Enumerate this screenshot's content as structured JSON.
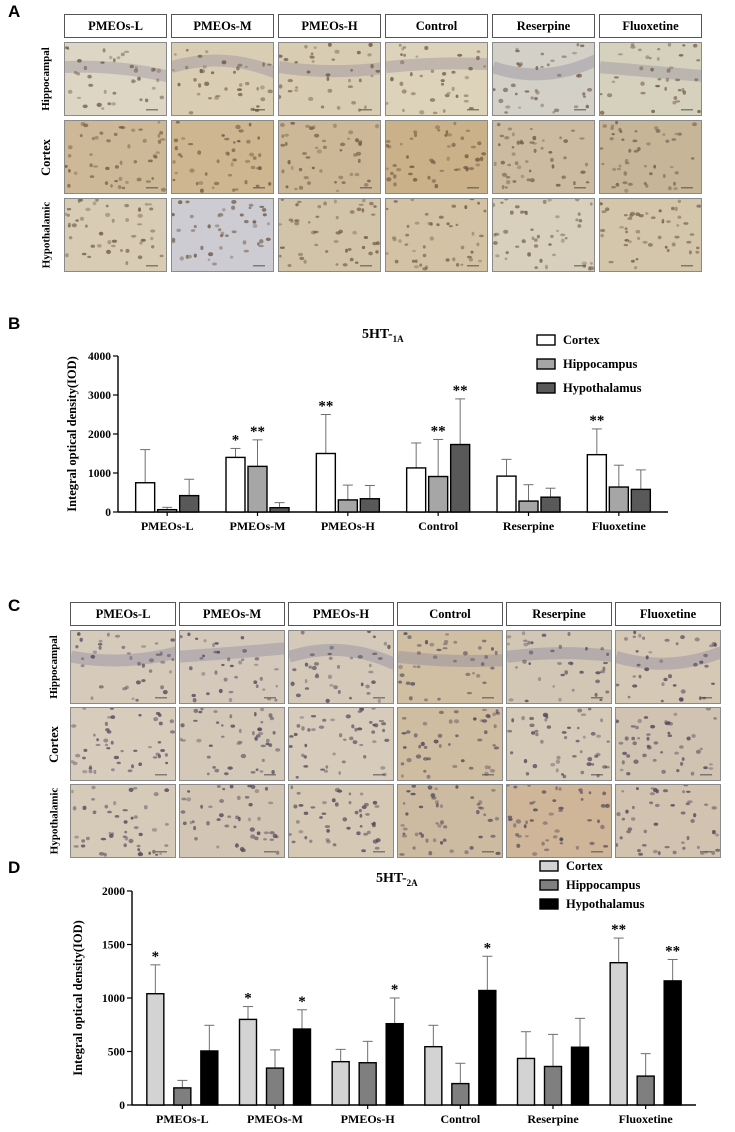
{
  "panel_labels": {
    "a": "A",
    "b": "B",
    "c": "C",
    "d": "D"
  },
  "groups": [
    "PMEOs-L",
    "PMEOs-M",
    "PMEOs-H",
    "Control",
    "Reserpine",
    "Fluoxetine"
  ],
  "rows_a": [
    "Hippocampal",
    "Cortex",
    "Hypothalamic"
  ],
  "rows_c": [
    "Hippocampal",
    "Cortex",
    "Hypothalamic"
  ],
  "micrograph_tints": {
    "a": [
      [
        "#ddd6c4",
        "#d9ceb4",
        "#d8ccb2",
        "#ddd3ba",
        "#d2d0c7",
        "#d6d1bd"
      ],
      [
        "#cdb897",
        "#cdb690",
        "#ccb796",
        "#cab189",
        "#cdbba1",
        "#c7b598"
      ],
      [
        "#d8ccb4",
        "#ccccd2",
        "#d2c4a8",
        "#d3c2a4",
        "#d8d0bd",
        "#d3c6ab"
      ]
    ],
    "c": [
      [
        "#d6cbbb",
        "#d4c9bb",
        "#d5cab9",
        "#d0bfa3",
        "#d2c6b4",
        "#d5c8b5"
      ],
      [
        "#d8cdbd",
        "#d4c8b8",
        "#d7cbbb",
        "#cfbda2",
        "#d5c9b8",
        "#d0c3b1"
      ],
      [
        "#d6cab8",
        "#d2c5b3",
        "#d5c8b5",
        "#ccbaa1",
        "#cfb699",
        "#d1c3af"
      ]
    ],
    "nuclei_a": "#6b5540",
    "nuclei_c": "#4a4256"
  },
  "chart_data": [
    {
      "type": "bar",
      "title_main": "5HT-",
      "title_sub": "1A",
      "ylabel": "Integral optical density(IOD)",
      "xlabel": "",
      "ylim": [
        0,
        4000
      ],
      "yticks": [
        0,
        1000,
        2000,
        3000,
        4000
      ],
      "grid": false,
      "legend_position": "top-right",
      "categories": [
        "PMEOs-L",
        "PMEOs-M",
        "PMEOs-H",
        "Control",
        "Reserpine",
        "Fluoxetine"
      ],
      "series": [
        {
          "name": "Cortex",
          "color": "#ffffff",
          "values": [
            750,
            1400,
            1500,
            1130,
            920,
            1470
          ],
          "errors": [
            850,
            230,
            1000,
            640,
            430,
            660
          ],
          "sig": [
            "",
            "*",
            "**",
            "",
            "",
            "**"
          ]
        },
        {
          "name": "Hippocampus",
          "color": "#a6a6a6",
          "values": [
            60,
            1170,
            310,
            910,
            280,
            640
          ],
          "errors": [
            60,
            680,
            380,
            950,
            420,
            560
          ],
          "sig": [
            "",
            "**",
            "",
            "**",
            "",
            ""
          ]
        },
        {
          "name": "Hypothalamus",
          "color": "#595959",
          "values": [
            420,
            110,
            340,
            1730,
            380,
            580
          ],
          "errors": [
            420,
            130,
            340,
            1170,
            230,
            500
          ],
          "sig": [
            "",
            "",
            "",
            "**",
            "",
            ""
          ]
        }
      ]
    },
    {
      "type": "bar",
      "title_main": "5HT-",
      "title_sub": "2A",
      "ylabel": "Integral optical density(IOD)",
      "xlabel": "",
      "ylim": [
        0,
        2000
      ],
      "yticks": [
        0,
        500,
        1000,
        1500,
        2000
      ],
      "grid": false,
      "legend_position": "top-right",
      "categories": [
        "PMEOs-L",
        "PMEOs-M",
        "PMEOs-H",
        "Control",
        "Reserpine",
        "Fluoxetine"
      ],
      "series": [
        {
          "name": "Cortex",
          "color": "#d3d3d3",
          "values": [
            1040,
            800,
            405,
            545,
            435,
            1330
          ],
          "errors": [
            270,
            120,
            115,
            200,
            250,
            230
          ],
          "sig": [
            "*",
            "*",
            "",
            "",
            "",
            "**"
          ]
        },
        {
          "name": "Hippocampus",
          "color": "#7f7f7f",
          "values": [
            160,
            345,
            395,
            200,
            360,
            270
          ],
          "errors": [
            70,
            170,
            200,
            190,
            300,
            210
          ],
          "sig": [
            "",
            "",
            "",
            "",
            "",
            ""
          ]
        },
        {
          "name": "Hypothalamus",
          "color": "#000000",
          "values": [
            505,
            710,
            760,
            1070,
            540,
            1160
          ],
          "errors": [
            240,
            180,
            240,
            320,
            270,
            200
          ],
          "sig": [
            "",
            "*",
            "*",
            "*",
            "",
            "**"
          ]
        }
      ]
    }
  ]
}
